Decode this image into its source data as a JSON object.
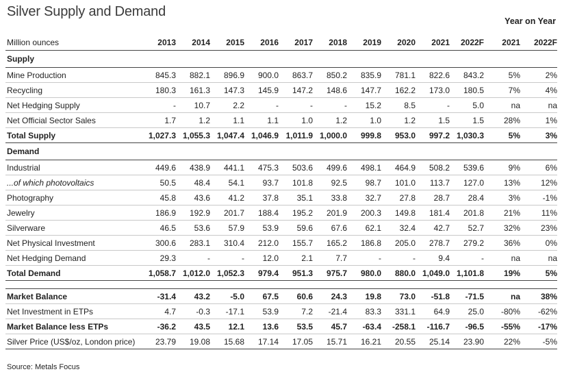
{
  "title": "Silver Supply and Demand",
  "yoy_heading": "Year on Year",
  "header": {
    "label": "Million ounces",
    "years": [
      "2013",
      "2014",
      "2015",
      "2016",
      "2017",
      "2018",
      "2019",
      "2020",
      "2021",
      "2022F"
    ],
    "yoy": [
      "2021",
      "2022F"
    ]
  },
  "supply_heading": "Supply",
  "supply_rows": [
    {
      "label": "Mine Production",
      "values": [
        "845.3",
        "882.1",
        "896.9",
        "900.0",
        "863.7",
        "850.2",
        "835.9",
        "781.1",
        "822.6",
        "843.2"
      ],
      "yoy": [
        "5%",
        "2%"
      ]
    },
    {
      "label": "Recycling",
      "values": [
        "180.3",
        "161.3",
        "147.3",
        "145.9",
        "147.2",
        "148.6",
        "147.7",
        "162.2",
        "173.0",
        "180.5"
      ],
      "yoy": [
        "7%",
        "4%"
      ]
    },
    {
      "label": "Net Hedging Supply",
      "values": [
        "-",
        "10.7",
        "2.2",
        "-",
        "-",
        "-",
        "15.2",
        "8.5",
        "-",
        "5.0"
      ],
      "yoy": [
        "na",
        "na"
      ]
    },
    {
      "label": "Net Official Sector Sales",
      "values": [
        "1.7",
        "1.2",
        "1.1",
        "1.1",
        "1.0",
        "1.2",
        "1.0",
        "1.2",
        "1.5",
        "1.5"
      ],
      "yoy": [
        "28%",
        "1%"
      ]
    }
  ],
  "total_supply": {
    "label": "Total Supply",
    "values": [
      "1,027.3",
      "1,055.3",
      "1,047.4",
      "1,046.9",
      "1,011.9",
      "1,000.0",
      "999.8",
      "953.0",
      "997.2",
      "1,030.3"
    ],
    "yoy": [
      "5%",
      "3%"
    ]
  },
  "demand_heading": "Demand",
  "demand_rows": [
    {
      "label": "Industrial",
      "values": [
        "449.6",
        "438.9",
        "441.1",
        "475.3",
        "503.6",
        "499.6",
        "498.1",
        "464.9",
        "508.2",
        "539.6"
      ],
      "yoy": [
        "9%",
        "6%"
      ]
    },
    {
      "label": "...of which photovoltaics",
      "values": [
        "50.5",
        "48.4",
        "54.1",
        "93.7",
        "101.8",
        "92.5",
        "98.7",
        "101.0",
        "113.7",
        "127.0"
      ],
      "yoy": [
        "13%",
        "12%"
      ]
    },
    {
      "label": "Photography",
      "values": [
        "45.8",
        "43.6",
        "41.2",
        "37.8",
        "35.1",
        "33.8",
        "32.7",
        "27.8",
        "28.7",
        "28.4"
      ],
      "yoy": [
        "3%",
        "-1%"
      ]
    },
    {
      "label": "Jewelry",
      "values": [
        "186.9",
        "192.9",
        "201.7",
        "188.4",
        "195.2",
        "201.9",
        "200.3",
        "149.8",
        "181.4",
        "201.8"
      ],
      "yoy": [
        "21%",
        "11%"
      ]
    },
    {
      "label": "Silverware",
      "values": [
        "46.5",
        "53.6",
        "57.9",
        "53.9",
        "59.6",
        "67.6",
        "62.1",
        "32.4",
        "42.7",
        "52.7"
      ],
      "yoy": [
        "32%",
        "23%"
      ]
    },
    {
      "label": "Net Physical Investment",
      "values": [
        "300.6",
        "283.1",
        "310.4",
        "212.0",
        "155.7",
        "165.2",
        "186.8",
        "205.0",
        "278.7",
        "279.2"
      ],
      "yoy": [
        "36%",
        "0%"
      ]
    },
    {
      "label": "Net Hedging Demand",
      "values": [
        "29.3",
        "-",
        "-",
        "12.0",
        "2.1",
        "7.7",
        "-",
        "-",
        "9.4",
        "-"
      ],
      "yoy": [
        "na",
        "na"
      ]
    }
  ],
  "total_demand": {
    "label": "Total Demand",
    "values": [
      "1,058.7",
      "1,012.0",
      "1,052.3",
      "979.4",
      "951.3",
      "975.7",
      "980.0",
      "880.0",
      "1,049.0",
      "1,101.8"
    ],
    "yoy": [
      "19%",
      "5%"
    ]
  },
  "market_rows": [
    {
      "label": "Market Balance",
      "values": [
        "-31.4",
        "43.2",
        "-5.0",
        "67.5",
        "60.6",
        "24.3",
        "19.8",
        "73.0",
        "-51.8",
        "-71.5"
      ],
      "yoy": [
        "na",
        "38%"
      ]
    },
    {
      "label": "Net Investment in ETPs",
      "values": [
        "4.7",
        "-0.3",
        "-17.1",
        "53.9",
        "7.2",
        "-21.4",
        "83.3",
        "331.1",
        "64.9",
        "25.0"
      ],
      "yoy": [
        "-80%",
        "-62%"
      ]
    },
    {
      "label": "Market Balance less ETPs",
      "values": [
        "-36.2",
        "43.5",
        "12.1",
        "13.6",
        "53.5",
        "45.7",
        "-63.4",
        "-258.1",
        "-116.7",
        "-96.5"
      ],
      "yoy": [
        "-55%",
        "-17%"
      ]
    },
    {
      "label": "Silver Price (US$/oz, London price)",
      "values": [
        "23.79",
        "19.08",
        "15.68",
        "17.14",
        "17.05",
        "15.71",
        "16.21",
        "20.55",
        "25.14",
        "23.90"
      ],
      "yoy": [
        "22%",
        "-5%"
      ]
    }
  ],
  "source": "Source: Metals Focus"
}
